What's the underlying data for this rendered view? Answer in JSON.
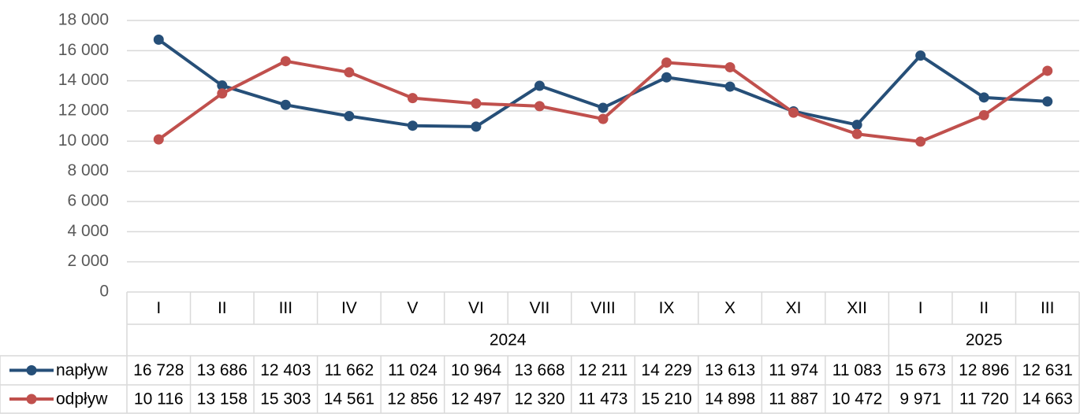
{
  "chart_data": {
    "type": "line",
    "categories": [
      "I",
      "II",
      "III",
      "IV",
      "V",
      "VI",
      "VII",
      "VIII",
      "IX",
      "X",
      "XI",
      "XII",
      "I",
      "II",
      "III"
    ],
    "category_groups": [
      {
        "label": "2024",
        "span": 12
      },
      {
        "label": "2025",
        "span": 3
      }
    ],
    "series": [
      {
        "name": "napływ",
        "color": "#264f78",
        "values": [
          16728,
          13686,
          12403,
          11662,
          11024,
          10964,
          13668,
          12211,
          14229,
          13613,
          11974,
          11083,
          15673,
          12896,
          12631
        ],
        "value_labels": [
          "16 728",
          "13 686",
          "12 403",
          "11 662",
          "11 024",
          "10 964",
          "13 668",
          "12 211",
          "14 229",
          "13 613",
          "11 974",
          "11 083",
          "15 673",
          "12 896",
          "12 631"
        ]
      },
      {
        "name": "odpływ",
        "color": "#c0504d",
        "values": [
          10116,
          13158,
          15303,
          14561,
          12856,
          12497,
          12320,
          11473,
          15210,
          14898,
          11887,
          10472,
          9971,
          11720,
          14663
        ],
        "value_labels": [
          "10 116",
          "13 158",
          "15 303",
          "14 561",
          "12 856",
          "12 497",
          "12 320",
          "11 473",
          "15 210",
          "14 898",
          "11 887",
          "10 472",
          "9 971",
          "11 720",
          "14 663"
        ]
      }
    ],
    "ylim": [
      0,
      18000
    ],
    "yticks": [
      0,
      {
        "value": 2000,
        "label": "2 000"
      },
      {
        "value": 4000,
        "label": "4 000"
      },
      {
        "value": 6000,
        "label": "6 000"
      },
      {
        "value": 8000,
        "label": "8 000"
      },
      {
        "value": 10000,
        "label": "10 000"
      },
      {
        "value": 12000,
        "label": "12 000"
      },
      {
        "value": 14000,
        "label": "14 000"
      },
      {
        "value": 16000,
        "label": "16 000"
      },
      {
        "value": 18000,
        "label": "18 000"
      }
    ],
    "grid": true,
    "data_table": true
  }
}
